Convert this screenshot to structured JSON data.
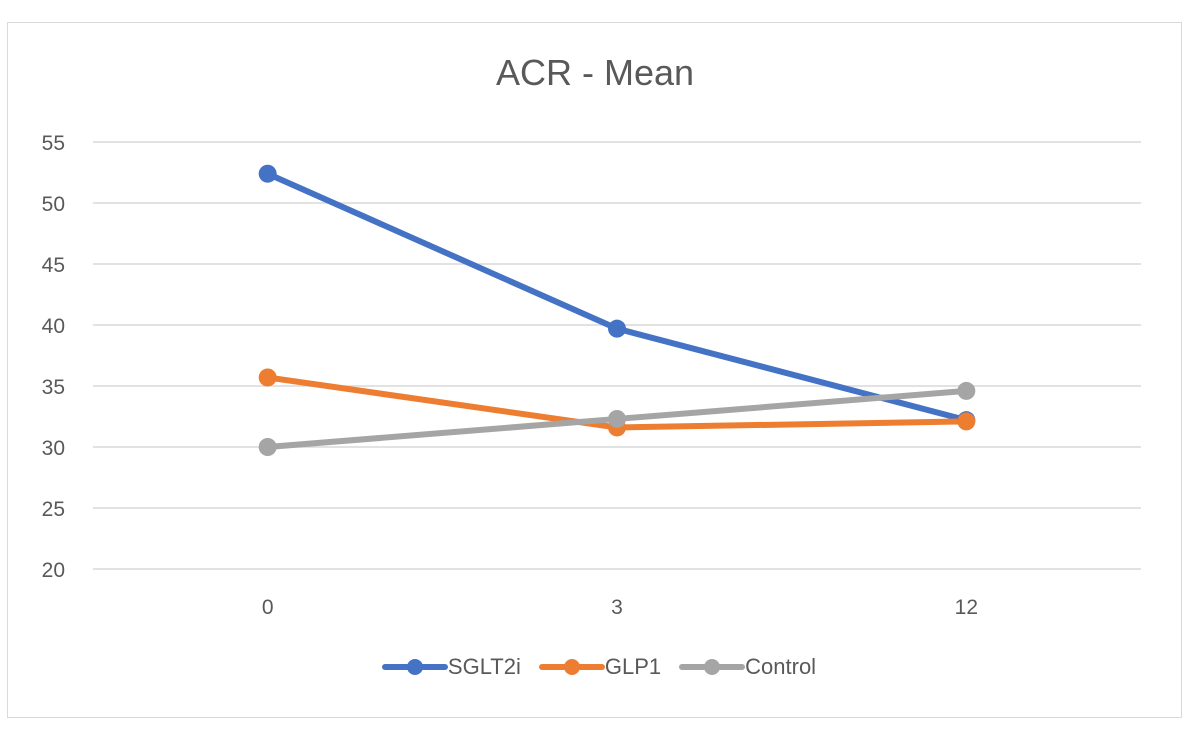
{
  "chart_data": {
    "type": "line",
    "title": "ACR - Mean",
    "xlabel": "",
    "ylabel": "",
    "categories": [
      "0",
      "3",
      "12"
    ],
    "ylim": [
      20,
      55
    ],
    "yticks": [
      "55",
      "50",
      "45",
      "40",
      "35",
      "30",
      "25",
      "20"
    ],
    "ytick_values": [
      55,
      50,
      45,
      40,
      35,
      30,
      25,
      20
    ],
    "grid": true,
    "legend_position": "bottom",
    "series": [
      {
        "name": "SGLT2i",
        "color": "#4472c4",
        "values": [
          52.4,
          39.7,
          32.2
        ]
      },
      {
        "name": "GLP1",
        "color": "#ed7d31",
        "values": [
          35.7,
          31.6,
          32.1
        ]
      },
      {
        "name": "Control",
        "color": "#a5a5a5",
        "values": [
          30.0,
          32.3,
          34.6
        ]
      }
    ]
  }
}
